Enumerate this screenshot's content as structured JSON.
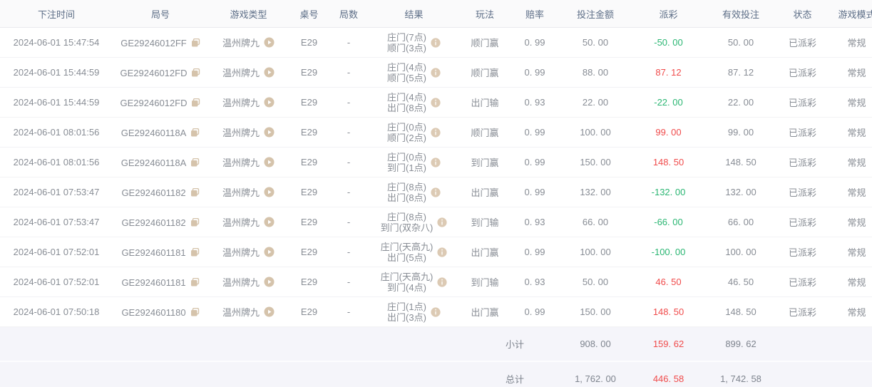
{
  "colors": {
    "payout_positive": "#f04b4b",
    "payout_negative": "#2bb673",
    "header_text": "#5d6e87",
    "body_text": "#888d95",
    "summary_bg": "#f5f5fa",
    "icon_tan": "#d5c3ab"
  },
  "table": {
    "columns": [
      {
        "key": "bet_time",
        "label": "下注时间"
      },
      {
        "key": "round_id",
        "label": "局号"
      },
      {
        "key": "game_type",
        "label": "游戏类型"
      },
      {
        "key": "table_no",
        "label": "桌号"
      },
      {
        "key": "round_count",
        "label": "局数"
      },
      {
        "key": "result",
        "label": "结果"
      },
      {
        "key": "play_type",
        "label": "玩法"
      },
      {
        "key": "odds",
        "label": "赔率"
      },
      {
        "key": "bet_amount",
        "label": "投注金额"
      },
      {
        "key": "payout",
        "label": "派彩"
      },
      {
        "key": "valid_bet",
        "label": "有效投注"
      },
      {
        "key": "status",
        "label": "状态"
      },
      {
        "key": "game_mode",
        "label": "游戏模式"
      }
    ],
    "rows": [
      {
        "bet_time": "2024-06-01 15:47:54",
        "round_id": "GE29246012FF",
        "game_type": "温州牌九",
        "table_no": "E29",
        "round_count": "-",
        "result_line1": "庄门(7点)",
        "result_line2": "顺门(3点)",
        "play_type": "顺门赢",
        "odds": "0. 99",
        "bet_amount": "50. 00",
        "payout": "-50. 00",
        "valid_bet": "50. 00",
        "status": "已派彩",
        "game_mode": "常规"
      },
      {
        "bet_time": "2024-06-01 15:44:59",
        "round_id": "GE29246012FD",
        "game_type": "温州牌九",
        "table_no": "E29",
        "round_count": "-",
        "result_line1": "庄门(4点)",
        "result_line2": "顺门(5点)",
        "play_type": "顺门赢",
        "odds": "0. 99",
        "bet_amount": "88. 00",
        "payout": "87. 12",
        "valid_bet": "87. 12",
        "status": "已派彩",
        "game_mode": "常规"
      },
      {
        "bet_time": "2024-06-01 15:44:59",
        "round_id": "GE29246012FD",
        "game_type": "温州牌九",
        "table_no": "E29",
        "round_count": "-",
        "result_line1": "庄门(4点)",
        "result_line2": "出门(8点)",
        "play_type": "出门输",
        "odds": "0. 93",
        "bet_amount": "22. 00",
        "payout": "-22. 00",
        "valid_bet": "22. 00",
        "status": "已派彩",
        "game_mode": "常规"
      },
      {
        "bet_time": "2024-06-01 08:01:56",
        "round_id": "GE292460118A",
        "game_type": "温州牌九",
        "table_no": "E29",
        "round_count": "-",
        "result_line1": "庄门(0点)",
        "result_line2": "顺门(2点)",
        "play_type": "顺门赢",
        "odds": "0. 99",
        "bet_amount": "100. 00",
        "payout": "99. 00",
        "valid_bet": "99. 00",
        "status": "已派彩",
        "game_mode": "常规"
      },
      {
        "bet_time": "2024-06-01 08:01:56",
        "round_id": "GE292460118A",
        "game_type": "温州牌九",
        "table_no": "E29",
        "round_count": "-",
        "result_line1": "庄门(0点)",
        "result_line2": "到门(1点)",
        "play_type": "到门赢",
        "odds": "0. 99",
        "bet_amount": "150. 00",
        "payout": "148. 50",
        "valid_bet": "148. 50",
        "status": "已派彩",
        "game_mode": "常规"
      },
      {
        "bet_time": "2024-06-01 07:53:47",
        "round_id": "GE2924601182",
        "game_type": "温州牌九",
        "table_no": "E29",
        "round_count": "-",
        "result_line1": "庄门(8点)",
        "result_line2": "出门(8点)",
        "play_type": "出门赢",
        "odds": "0. 99",
        "bet_amount": "132. 00",
        "payout": "-132. 00",
        "valid_bet": "132. 00",
        "status": "已派彩",
        "game_mode": "常规"
      },
      {
        "bet_time": "2024-06-01 07:53:47",
        "round_id": "GE2924601182",
        "game_type": "温州牌九",
        "table_no": "E29",
        "round_count": "-",
        "result_line1": "庄门(8点)",
        "result_line2": "到门(双杂八)",
        "play_type": "到门输",
        "odds": "0. 93",
        "bet_amount": "66. 00",
        "payout": "-66. 00",
        "valid_bet": "66. 00",
        "status": "已派彩",
        "game_mode": "常规"
      },
      {
        "bet_time": "2024-06-01 07:52:01",
        "round_id": "GE2924601181",
        "game_type": "温州牌九",
        "table_no": "E29",
        "round_count": "-",
        "result_line1": "庄门(天高九)",
        "result_line2": "出门(5点)",
        "play_type": "出门赢",
        "odds": "0. 99",
        "bet_amount": "100. 00",
        "payout": "-100. 00",
        "valid_bet": "100. 00",
        "status": "已派彩",
        "game_mode": "常规"
      },
      {
        "bet_time": "2024-06-01 07:52:01",
        "round_id": "GE2924601181",
        "game_type": "温州牌九",
        "table_no": "E29",
        "round_count": "-",
        "result_line1": "庄门(天高九)",
        "result_line2": "到门(4点)",
        "play_type": "到门输",
        "odds": "0. 93",
        "bet_amount": "50. 00",
        "payout": "46. 50",
        "valid_bet": "46. 50",
        "status": "已派彩",
        "game_mode": "常规"
      },
      {
        "bet_time": "2024-06-01 07:50:18",
        "round_id": "GE2924601180",
        "game_type": "温州牌九",
        "table_no": "E29",
        "round_count": "-",
        "result_line1": "庄门(1点)",
        "result_line2": "出门(3点)",
        "play_type": "出门赢",
        "odds": "0. 99",
        "bet_amount": "150. 00",
        "payout": "148. 50",
        "valid_bet": "148. 50",
        "status": "已派彩",
        "game_mode": "常规"
      }
    ],
    "summary": [
      {
        "key": "subtotal",
        "label": "小计",
        "bet_amount": "908. 00",
        "payout": "159. 62",
        "valid_bet": "899. 62"
      },
      {
        "key": "total",
        "label": "总计",
        "bet_amount": "1, 762. 00",
        "payout": "446. 58",
        "valid_bet": "1, 742. 58"
      }
    ]
  }
}
